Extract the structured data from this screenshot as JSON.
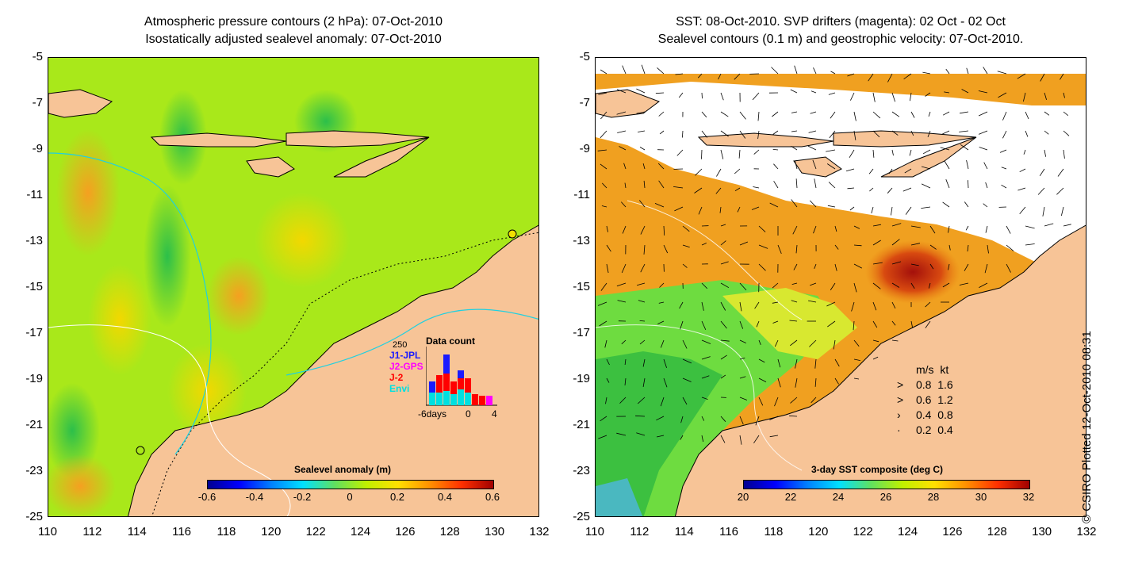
{
  "left_panel": {
    "title_line1": "Atmospheric pressure contours (2 hPa): 07-Oct-2010",
    "title_line2": "Isostatically adjusted sealevel anomaly: 07-Oct-2010",
    "colorbar": {
      "title": "Sealevel anomaly (m)",
      "ticks": [
        "-0.6",
        "-0.4",
        "-0.2",
        "0",
        "0.2",
        "0.4",
        "0.6"
      ]
    },
    "data_count": {
      "title": "Data count",
      "ymax_label": "250",
      "legend": [
        {
          "label": "J1-JPL",
          "color": "#1a1aff"
        },
        {
          "label": "J2-GPS",
          "color": "#ff00ff"
        },
        {
          "label": "J-2",
          "color": "#ff0000"
        },
        {
          "label": "Envi",
          "color": "#00e0e0"
        }
      ],
      "xlabel_left": "-6days",
      "xlabel_mid": "0",
      "xlabel_right": "4"
    }
  },
  "right_panel": {
    "title_line1": "SST: 08-Oct-2010. SVP drifters (magenta): 02 Oct - 02 Oct",
    "title_line2": "Sealevel contours (0.1 m) and geostrophic velocity: 07-Oct-2010.",
    "colorbar": {
      "title": "3-day SST composite (deg C)",
      "ticks": [
        "20",
        "22",
        "24",
        "26",
        "28",
        "30",
        "32"
      ]
    },
    "speed_legend": {
      "header_ms": "m/s",
      "header_kt": "kt",
      "rows": [
        {
          "ms": "0.8",
          "kt": "1.6"
        },
        {
          "ms": "0.6",
          "kt": "1.2"
        },
        {
          "ms": "0.4",
          "kt": "0.8"
        },
        {
          "ms": "0.2",
          "kt": "0.4"
        }
      ]
    }
  },
  "axes": {
    "y_ticks": [
      "-5",
      "-7",
      "-9",
      "-11",
      "-13",
      "-15",
      "-17",
      "-19",
      "-21",
      "-23",
      "-25"
    ],
    "x_ticks": [
      "110",
      "112",
      "114",
      "116",
      "118",
      "120",
      "122",
      "124",
      "126",
      "128",
      "130",
      "132"
    ]
  },
  "copyright": "© CSIRO Plotted 12-Oct-2010 08:31",
  "colors": {
    "land": "#f7c497",
    "sea_low": "#7ee03a",
    "sea_mid": "#d6f000",
    "sea_warm": "#f7a21b",
    "hot": "#a4100b"
  }
}
